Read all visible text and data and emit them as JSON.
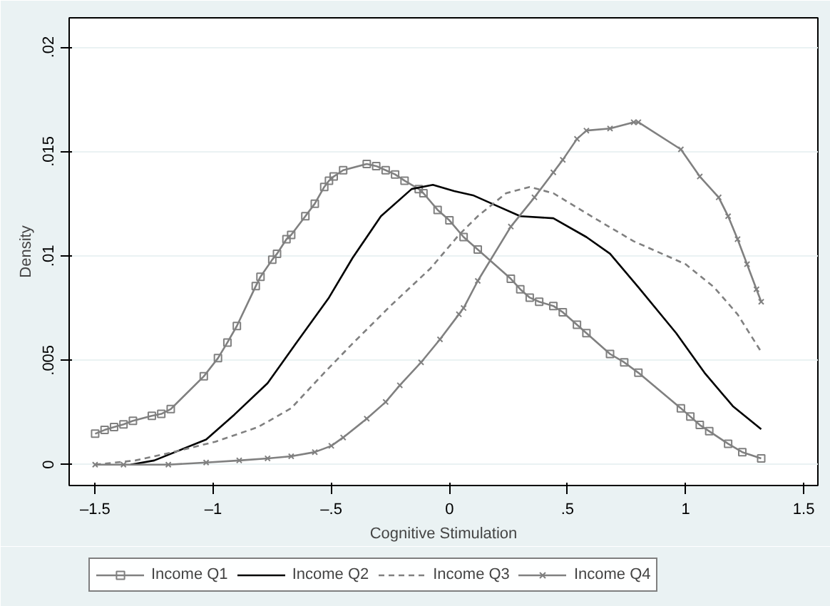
{
  "chart_data": {
    "type": "line",
    "xlabel": "Cognitive Stimulation",
    "ylabel": "Density",
    "xlim": [
      -1.61,
      1.56
    ],
    "ylim": [
      -0.001,
      0.0214
    ],
    "xticks": [
      {
        "value": -1.5,
        "label": "–1.5"
      },
      {
        "value": -1,
        "label": "–1"
      },
      {
        "value": -0.5,
        "label": "–.5"
      },
      0,
      {
        "value": 0.5,
        "label": ".5"
      },
      1,
      {
        "value": 1.5,
        "label": "1.5"
      }
    ],
    "yticks": [
      0,
      {
        "value": 0.005,
        "label": ".005"
      },
      {
        "value": 0.01,
        "label": ".01"
      },
      {
        "value": 0.015,
        "label": ".015"
      },
      {
        "value": 0.02,
        "label": ".02"
      }
    ],
    "grid": "y",
    "legend": "bottom",
    "series": [
      {
        "name": "Income Q1",
        "color": "#808080",
        "marker": "square",
        "line_style": "solid",
        "x": [
          -1.5,
          -1.46,
          -1.42,
          -1.38,
          -1.34,
          -1.26,
          -1.22,
          -1.18,
          -1.04,
          -0.98,
          -0.94,
          -0.9,
          -0.82,
          -0.8,
          -0.75,
          -0.73,
          -0.69,
          -0.67,
          -0.61,
          -0.57,
          -0.53,
          -0.51,
          -0.49,
          -0.45,
          -0.35,
          -0.31,
          -0.27,
          -0.23,
          -0.19,
          -0.13,
          -0.11,
          -0.05,
          0.0,
          0.06,
          0.12,
          0.26,
          0.3,
          0.34,
          0.38,
          0.44,
          0.48,
          0.54,
          0.58,
          0.68,
          0.74,
          0.8,
          0.98,
          1.02,
          1.06,
          1.1,
          1.18,
          1.24,
          1.32
        ],
        "values": [
          0.00148,
          0.00166,
          0.0018,
          0.00193,
          0.0021,
          0.00234,
          0.00243,
          0.00266,
          0.00423,
          0.0051,
          0.00585,
          0.00664,
          0.00855,
          0.009,
          0.00982,
          0.0101,
          0.0108,
          0.011,
          0.0119,
          0.0125,
          0.0133,
          0.0136,
          0.0138,
          0.0141,
          0.0144,
          0.0143,
          0.0141,
          0.0139,
          0.0136,
          0.0132,
          0.013,
          0.0122,
          0.0117,
          0.0109,
          0.0103,
          0.0089,
          0.0084,
          0.008,
          0.0078,
          0.0076,
          0.0073,
          0.0067,
          0.0063,
          0.0053,
          0.0049,
          0.0044,
          0.0027,
          0.0023,
          0.0019,
          0.0016,
          0.001,
          0.0006,
          0.0003
        ]
      },
      {
        "name": "Income Q2",
        "color": "#000000",
        "marker": "none",
        "line_style": "solid",
        "x": [
          -1.35,
          -1.25,
          -1.03,
          -0.91,
          -0.77,
          -0.65,
          -0.51,
          -0.41,
          -0.29,
          -0.16,
          -0.07,
          0.02,
          0.1,
          0.2,
          0.3,
          0.44,
          0.58,
          0.68,
          0.8,
          0.96,
          1.08,
          1.2,
          1.32
        ],
        "values": [
          0.0,
          0.0002,
          0.0012,
          0.0024,
          0.0039,
          0.0058,
          0.008,
          0.0099,
          0.0119,
          0.0132,
          0.0134,
          0.0131,
          0.0129,
          0.0124,
          0.0119,
          0.0118,
          0.0109,
          0.0101,
          0.0085,
          0.0063,
          0.0044,
          0.0028,
          0.0017
        ]
      },
      {
        "name": "Income Q3",
        "color": "#808080",
        "marker": "none",
        "line_style": "dashed",
        "x": [
          -1.5,
          -1.33,
          -1.17,
          -0.99,
          -0.81,
          -0.67,
          -0.53,
          -0.41,
          -0.25,
          -0.08,
          0.04,
          0.12,
          0.24,
          0.34,
          0.44,
          0.6,
          0.78,
          1.0,
          1.12,
          1.22,
          1.32
        ],
        "values": [
          0.0,
          0.0002,
          0.0006,
          0.0011,
          0.0018,
          0.0027,
          0.0044,
          0.0058,
          0.0076,
          0.0094,
          0.011,
          0.0119,
          0.013,
          0.0133,
          0.013,
          0.0119,
          0.0107,
          0.0096,
          0.0085,
          0.0072,
          0.0054
        ]
      },
      {
        "name": "Income Q4",
        "color": "#808080",
        "marker": "cross",
        "line_style": "solid",
        "x": [
          -1.5,
          -1.38,
          -1.19,
          -1.03,
          -0.89,
          -0.77,
          -0.67,
          -0.57,
          -0.5,
          -0.45,
          -0.35,
          -0.27,
          -0.21,
          -0.12,
          -0.04,
          0.04,
          0.06,
          0.12,
          0.26,
          0.36,
          0.44,
          0.48,
          0.54,
          0.58,
          0.68,
          0.78,
          0.8,
          0.98,
          1.06,
          1.14,
          1.18,
          1.22,
          1.26,
          1.3,
          1.32
        ],
        "values": [
          0.0,
          0.0,
          0.0,
          0.0001,
          0.0002,
          0.0003,
          0.0004,
          0.0006,
          0.0009,
          0.0013,
          0.0022,
          0.003,
          0.0038,
          0.0049,
          0.006,
          0.0072,
          0.0075,
          0.0088,
          0.0114,
          0.0128,
          0.014,
          0.0146,
          0.0156,
          0.016,
          0.0161,
          0.0164,
          0.0164,
          0.0151,
          0.0138,
          0.0128,
          0.0119,
          0.0108,
          0.0096,
          0.0084,
          0.0078
        ]
      }
    ]
  }
}
